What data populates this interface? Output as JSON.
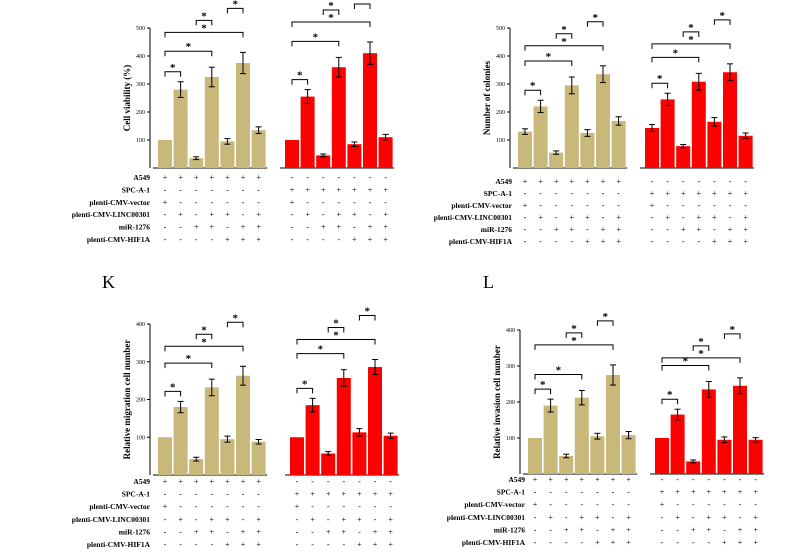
{
  "colors": {
    "a549": "#c8b87a",
    "spca1": "#ff0000",
    "axis": "#000000"
  },
  "row_labels": [
    "A549",
    "SPC-A-1",
    "plenti-CMV-vector",
    "plenti-CMV-LINC00301",
    "miR-1276",
    "plenti-CMV-HIF1A"
  ],
  "group_signs": {
    "A549": [
      [
        "+",
        "+",
        "+",
        "+",
        "+",
        "+",
        "+"
      ],
      [
        "-",
        "-",
        "-",
        "-",
        "-",
        "-",
        "-"
      ],
      [
        "+",
        "-",
        "-",
        "-",
        "-",
        "-",
        "-"
      ],
      [
        "-",
        "+",
        "-",
        "+",
        "+",
        "-",
        "+"
      ],
      [
        "-",
        "-",
        "+",
        "+",
        "-",
        "+",
        "+"
      ],
      [
        "-",
        "-",
        "-",
        "-",
        "+",
        "+",
        "+"
      ]
    ],
    "SPCA1": [
      [
        "-",
        "-",
        "-",
        "-",
        "-",
        "-",
        "-"
      ],
      [
        "+",
        "+",
        "+",
        "+",
        "+",
        "+",
        "+"
      ],
      [
        "+",
        "-",
        "-",
        "-",
        "-",
        "-",
        "-"
      ],
      [
        "-",
        "+",
        "-",
        "+",
        "+",
        "-",
        "+"
      ],
      [
        "-",
        "-",
        "+",
        "+",
        "-",
        "+",
        "+"
      ],
      [
        "-",
        "-",
        "-",
        "-",
        "+",
        "+",
        "+"
      ]
    ]
  },
  "star": "*",
  "chart_data": [
    {
      "type": "bar",
      "panel_label": "",
      "ylabel": "Cell viability (%)",
      "ylim": [
        0,
        500
      ],
      "yticks": [
        "100",
        "200",
        "300",
        "400",
        "500"
      ],
      "series": [
        {
          "values": [
            100,
            280,
            35,
            325,
            95,
            375,
            135
          ],
          "errors": [
            0,
            28,
            5,
            35,
            10,
            38,
            12
          ]
        },
        {
          "values": [
            100,
            255,
            45,
            360,
            85,
            410,
            110
          ],
          "errors": [
            0,
            25,
            5,
            35,
            8,
            40,
            10
          ]
        }
      ],
      "brackets": [
        [
          0,
          1
        ],
        [
          0,
          3
        ],
        [
          0,
          5
        ],
        [
          2,
          3
        ],
        [
          4,
          5
        ]
      ]
    },
    {
      "type": "bar",
      "panel_label": "",
      "ylabel": "Number of colonies",
      "ylim": [
        0,
        500
      ],
      "yticks": [
        "100",
        "200",
        "300",
        "400",
        "500"
      ],
      "series": [
        {
          "values": [
            130,
            220,
            55,
            295,
            125,
            335,
            168
          ],
          "errors": [
            10,
            22,
            6,
            30,
            12,
            30,
            15
          ]
        },
        {
          "values": [
            143,
            245,
            78,
            308,
            165,
            342,
            115
          ],
          "errors": [
            12,
            22,
            6,
            30,
            15,
            30,
            10
          ]
        }
      ],
      "brackets": [
        [
          0,
          1
        ],
        [
          0,
          3
        ],
        [
          0,
          5
        ],
        [
          2,
          3
        ],
        [
          4,
          5
        ]
      ]
    },
    {
      "type": "bar",
      "panel_label": "K",
      "ylabel": "Relative migration cell number",
      "ylim": [
        0,
        400
      ],
      "yticks": [
        "100",
        "200",
        "300",
        "400"
      ],
      "series": [
        {
          "values": [
            100,
            180,
            42,
            232,
            95,
            263,
            88
          ],
          "errors": [
            0,
            15,
            5,
            22,
            8,
            25,
            6
          ]
        },
        {
          "values": [
            100,
            185,
            57,
            257,
            113,
            286,
            104
          ],
          "errors": [
            0,
            18,
            5,
            22,
            10,
            20,
            7
          ]
        }
      ],
      "brackets": [
        [
          0,
          1
        ],
        [
          0,
          3
        ],
        [
          0,
          5
        ],
        [
          2,
          3
        ],
        [
          4,
          5
        ]
      ]
    },
    {
      "type": "bar",
      "panel_label": "L",
      "ylabel": "Relative invasion cell number",
      "ylim": [
        0,
        400
      ],
      "yticks": [
        "100",
        "200",
        "300",
        "400"
      ],
      "series": [
        {
          "values": [
            100,
            190,
            50,
            212,
            105,
            275,
            108
          ],
          "errors": [
            0,
            18,
            5,
            20,
            8,
            28,
            10
          ]
        },
        {
          "values": [
            100,
            165,
            35,
            235,
            95,
            245,
            95
          ],
          "errors": [
            0,
            15,
            4,
            22,
            8,
            22,
            6
          ]
        }
      ],
      "brackets": [
        [
          0,
          1
        ],
        [
          0,
          3
        ],
        [
          0,
          5
        ],
        [
          2,
          3
        ],
        [
          4,
          5
        ]
      ]
    }
  ]
}
